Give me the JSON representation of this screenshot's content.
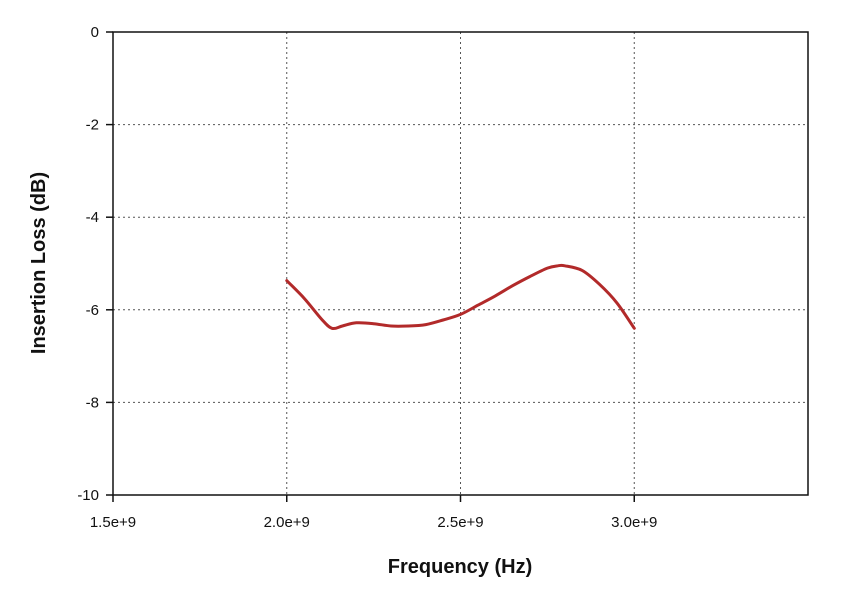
{
  "chart_data": {
    "type": "line",
    "title": "",
    "xlabel": "Frequency (Hz)",
    "ylabel": "Insertion Loss (dB)",
    "xlim": [
      1500000000,
      3500000000
    ],
    "ylim": [
      -10,
      0
    ],
    "xticks": [
      1500000000,
      2000000000,
      2500000000,
      3000000000
    ],
    "xtick_labels": [
      "1.5e+9",
      "2.0e+9",
      "2.5e+9",
      "3.0e+9"
    ],
    "yticks": [
      0,
      -2,
      -4,
      -6,
      -8,
      -10
    ],
    "ytick_labels": [
      "0",
      "-2",
      "-4",
      "-6",
      "-8",
      "-10"
    ],
    "grid": true,
    "series": [
      {
        "color": "#b22a2a",
        "x": [
          2000000000,
          2050000000,
          2100000000,
          2130000000,
          2160000000,
          2200000000,
          2250000000,
          2300000000,
          2350000000,
          2400000000,
          2450000000,
          2500000000,
          2550000000,
          2600000000,
          2650000000,
          2700000000,
          2750000000,
          2780000000,
          2800000000,
          2850000000,
          2900000000,
          2950000000,
          3000000000
        ],
        "y": [
          -5.37,
          -5.75,
          -6.2,
          -6.4,
          -6.35,
          -6.28,
          -6.3,
          -6.35,
          -6.35,
          -6.32,
          -6.22,
          -6.1,
          -5.9,
          -5.7,
          -5.48,
          -5.28,
          -5.1,
          -5.05,
          -5.05,
          -5.15,
          -5.45,
          -5.85,
          -6.4
        ]
      }
    ]
  }
}
